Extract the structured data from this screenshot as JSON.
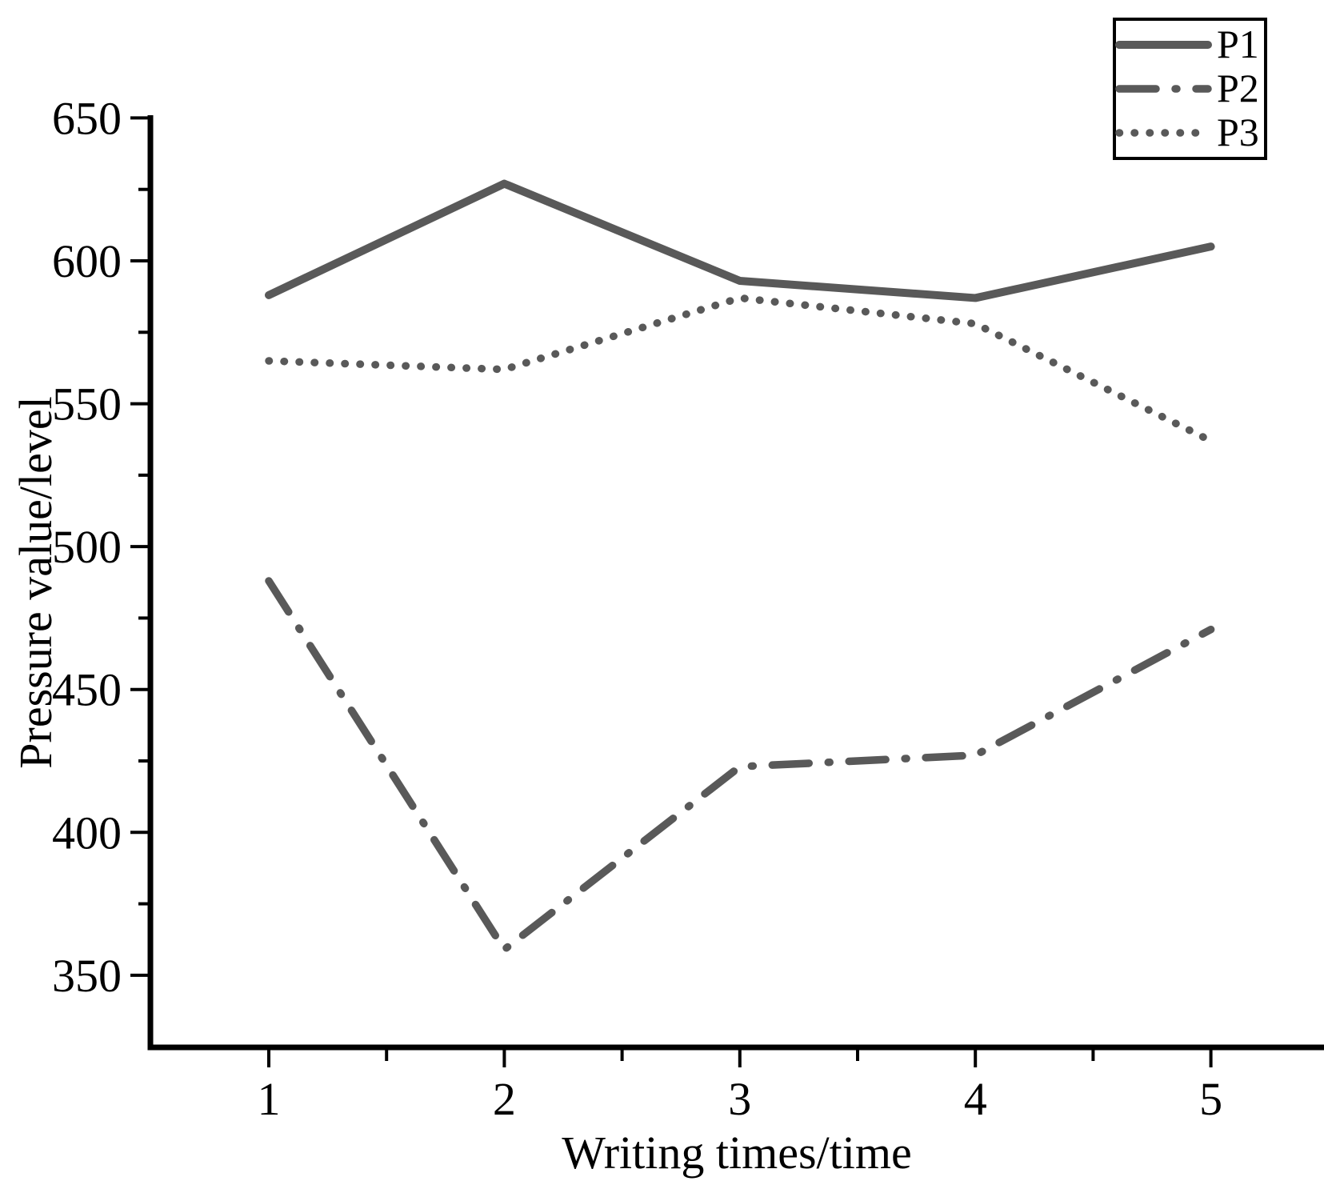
{
  "figure": {
    "background_color": "#ffffff",
    "axis_color": "#000000",
    "line_color": "#595959",
    "text_color": "#000000"
  },
  "chart_data": {
    "type": "line",
    "title": "",
    "xlabel": "Writing times/time",
    "ylabel": "Pressure value/level",
    "x": [
      1,
      2,
      3,
      4,
      5
    ],
    "series": [
      {
        "name": "P1",
        "style": "solid",
        "values": [
          588,
          627,
          593,
          587,
          605
        ]
      },
      {
        "name": "P2",
        "style": "dash-dot",
        "values": [
          488,
          359,
          423,
          427,
          471
        ]
      },
      {
        "name": "P3",
        "style": "dotted",
        "values": [
          565,
          562,
          587,
          578,
          537
        ]
      }
    ],
    "xticks": [
      1,
      2,
      3,
      4,
      5
    ],
    "yticks": [
      350,
      400,
      450,
      500,
      550,
      600,
      650
    ],
    "xlim": [
      0.5,
      5.5
    ],
    "ylim": [
      325,
      650
    ],
    "grid": false,
    "legend_position": "top-right",
    "legend_items": [
      "P1",
      "P2",
      "P3"
    ]
  }
}
